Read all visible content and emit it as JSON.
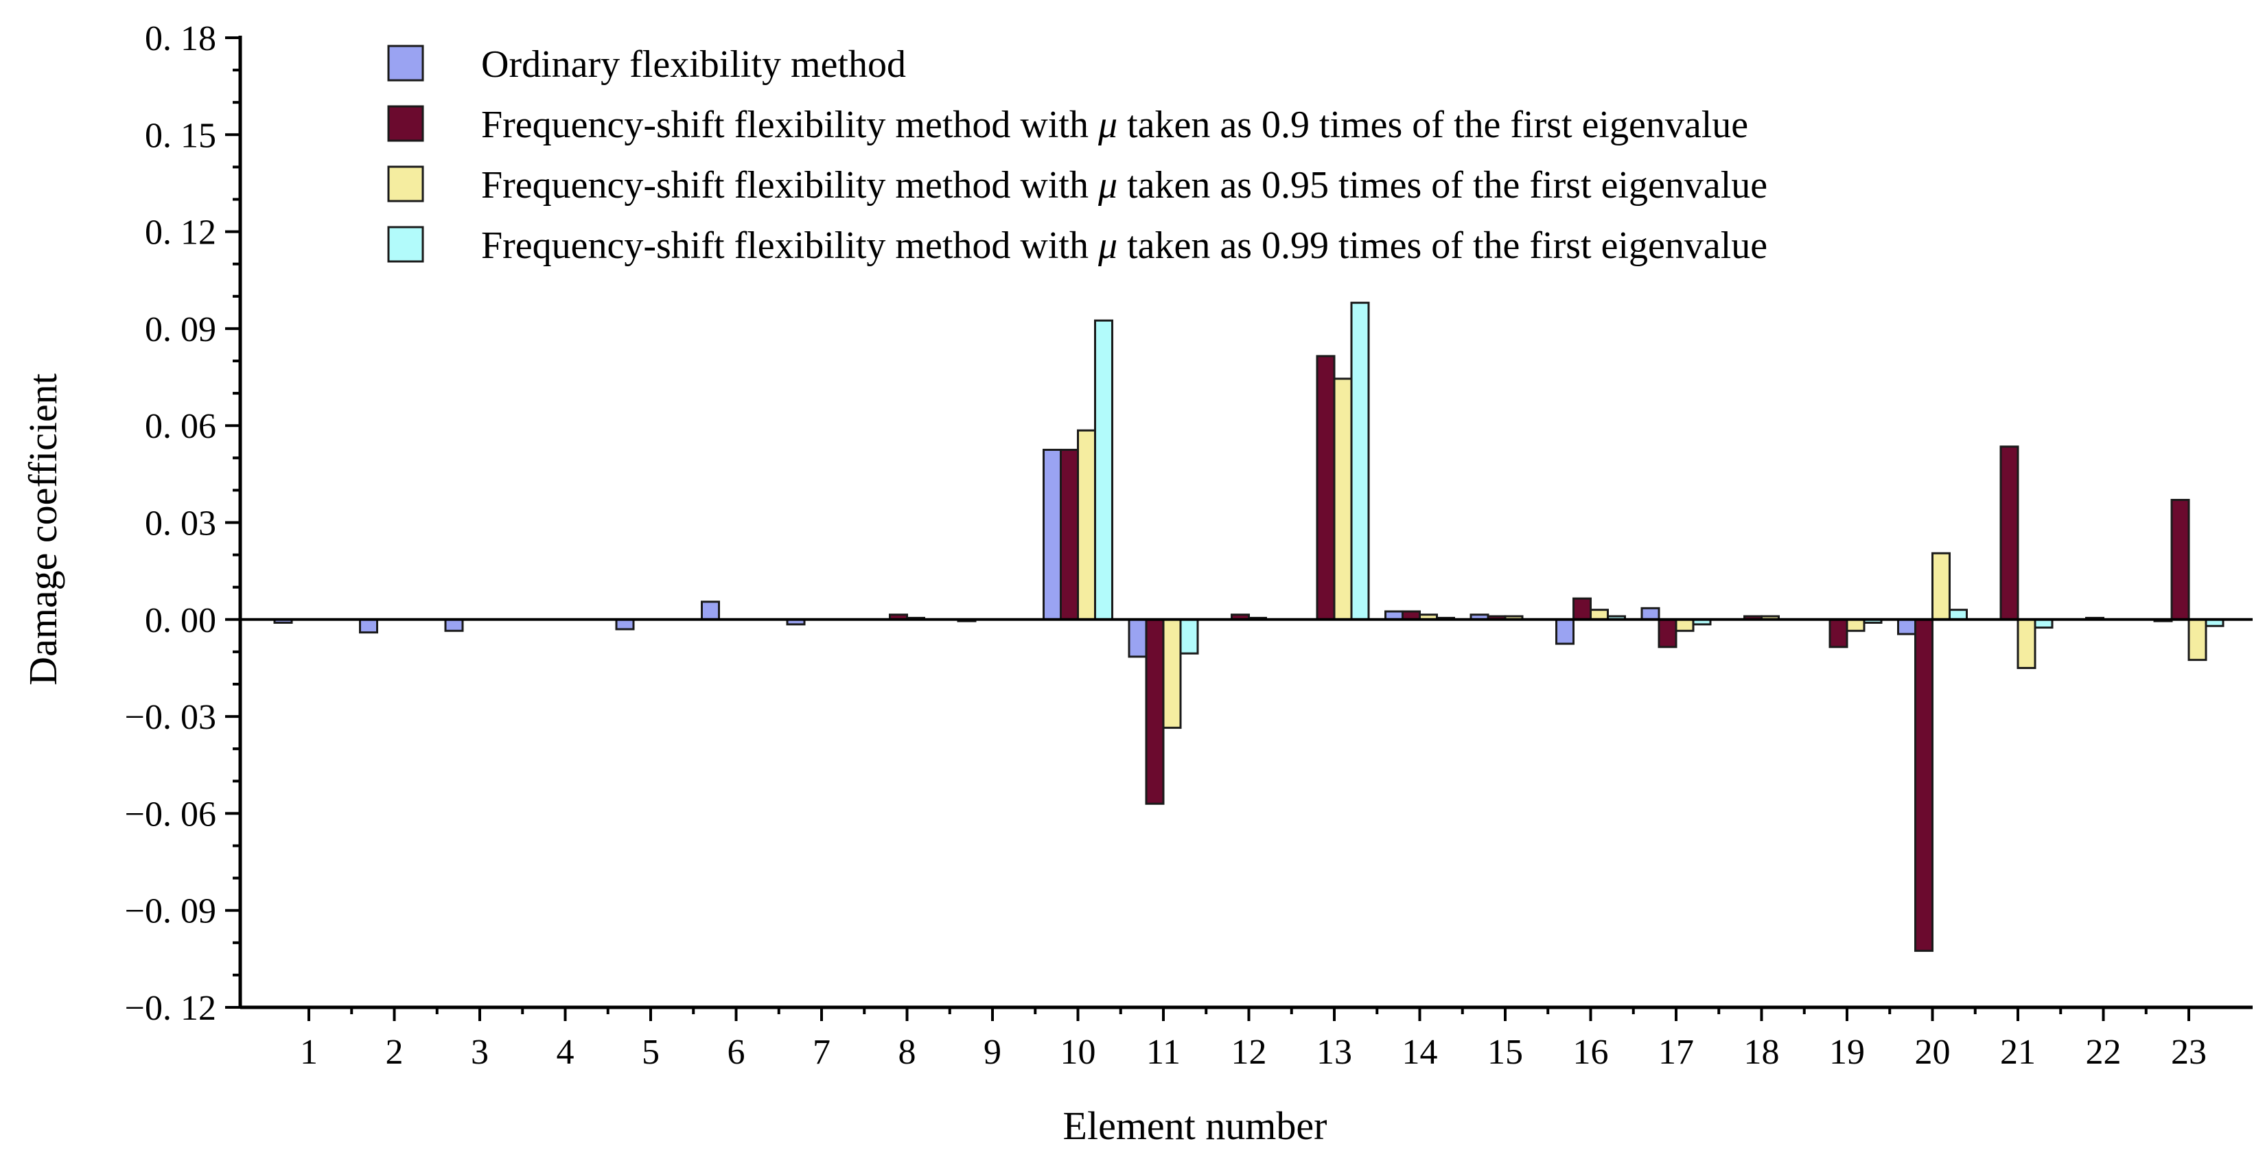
{
  "chart_data": {
    "type": "bar",
    "xlabel": "Element number",
    "ylabel": "Damage coefficient",
    "ylim": [
      -0.12,
      0.18
    ],
    "yticks": [
      0.18,
      0.15,
      0.12,
      0.09,
      0.06,
      0.03,
      0.0,
      -0.03,
      -0.06,
      -0.09,
      -0.12
    ],
    "ytick_labels": [
      "0. 18",
      "0. 15",
      "0. 12",
      "0. 09",
      "0. 06",
      "0. 03",
      "0. 00",
      "−0. 03",
      "−0. 06",
      "−0. 09",
      "−0. 12"
    ],
    "categories": [
      "1",
      "2",
      "3",
      "4",
      "5",
      "6",
      "7",
      "8",
      "9",
      "10",
      "11",
      "12",
      "13",
      "14",
      "15",
      "16",
      "17",
      "18",
      "19",
      "20",
      "21",
      "22",
      "23"
    ],
    "legend": {
      "position": "top-left",
      "items": [
        {
          "prefix": "Ordinary flexibility method",
          "mu": "",
          "suffix": ""
        },
        {
          "prefix": "Frequency-shift flexibility method with ",
          "mu": "μ",
          "suffix": " taken as 0.9 times of the first eigenvalue"
        },
        {
          "prefix": "Frequency-shift flexibility method with ",
          "mu": "μ",
          "suffix": " taken as 0.95 times of the first eigenvalue"
        },
        {
          "prefix": "Frequency-shift flexibility method with ",
          "mu": "μ",
          "suffix": " taken as 0.99 times of the first eigenvalue"
        }
      ]
    },
    "series": [
      {
        "name": "Ordinary flexibility method",
        "color": "#9aa3f2",
        "values": [
          -0.001,
          -0.004,
          -0.0035,
          0,
          -0.003,
          0.0055,
          -0.0015,
          0,
          -0.0005,
          0.0525,
          -0.0115,
          0,
          0,
          0.0025,
          0.0015,
          -0.0075,
          0.0035,
          0,
          0,
          -0.0045,
          0,
          0,
          -0.0005
        ]
      },
      {
        "name": "Frequency-shift flexibility method with μ taken as 0.9 times of the first eigenvalue",
        "color": "#6b0a2e",
        "values": [
          0,
          0,
          0,
          0,
          0,
          0,
          0,
          0.0015,
          0,
          0.0525,
          -0.057,
          0.0015,
          0.0815,
          0.0025,
          0.001,
          0.0065,
          -0.0085,
          0.001,
          -0.0085,
          -0.1025,
          0.0535,
          0.0005,
          0.037
        ]
      },
      {
        "name": "Frequency-shift flexibility method with μ taken as 0.95 times of the first eigenvalue",
        "color": "#f5eda0",
        "values": [
          0,
          0,
          0,
          0,
          0,
          0,
          0,
          0.0005,
          0,
          0.0585,
          -0.0335,
          0.0005,
          0.0745,
          0.0015,
          0.001,
          0.003,
          -0.0035,
          0.001,
          -0.0035,
          0.0205,
          -0.015,
          0,
          -0.0125
        ]
      },
      {
        "name": "Frequency-shift flexibility method with μ taken as 0.99 times of the first eigenvalue",
        "color": "#b2fbfb",
        "values": [
          0,
          0,
          0,
          0,
          0,
          0,
          0,
          0,
          0,
          0.0925,
          -0.0105,
          0,
          0.098,
          0.0005,
          0,
          0.001,
          -0.0015,
          0,
          -0.001,
          0.003,
          -0.0025,
          0,
          -0.002
        ]
      }
    ]
  }
}
